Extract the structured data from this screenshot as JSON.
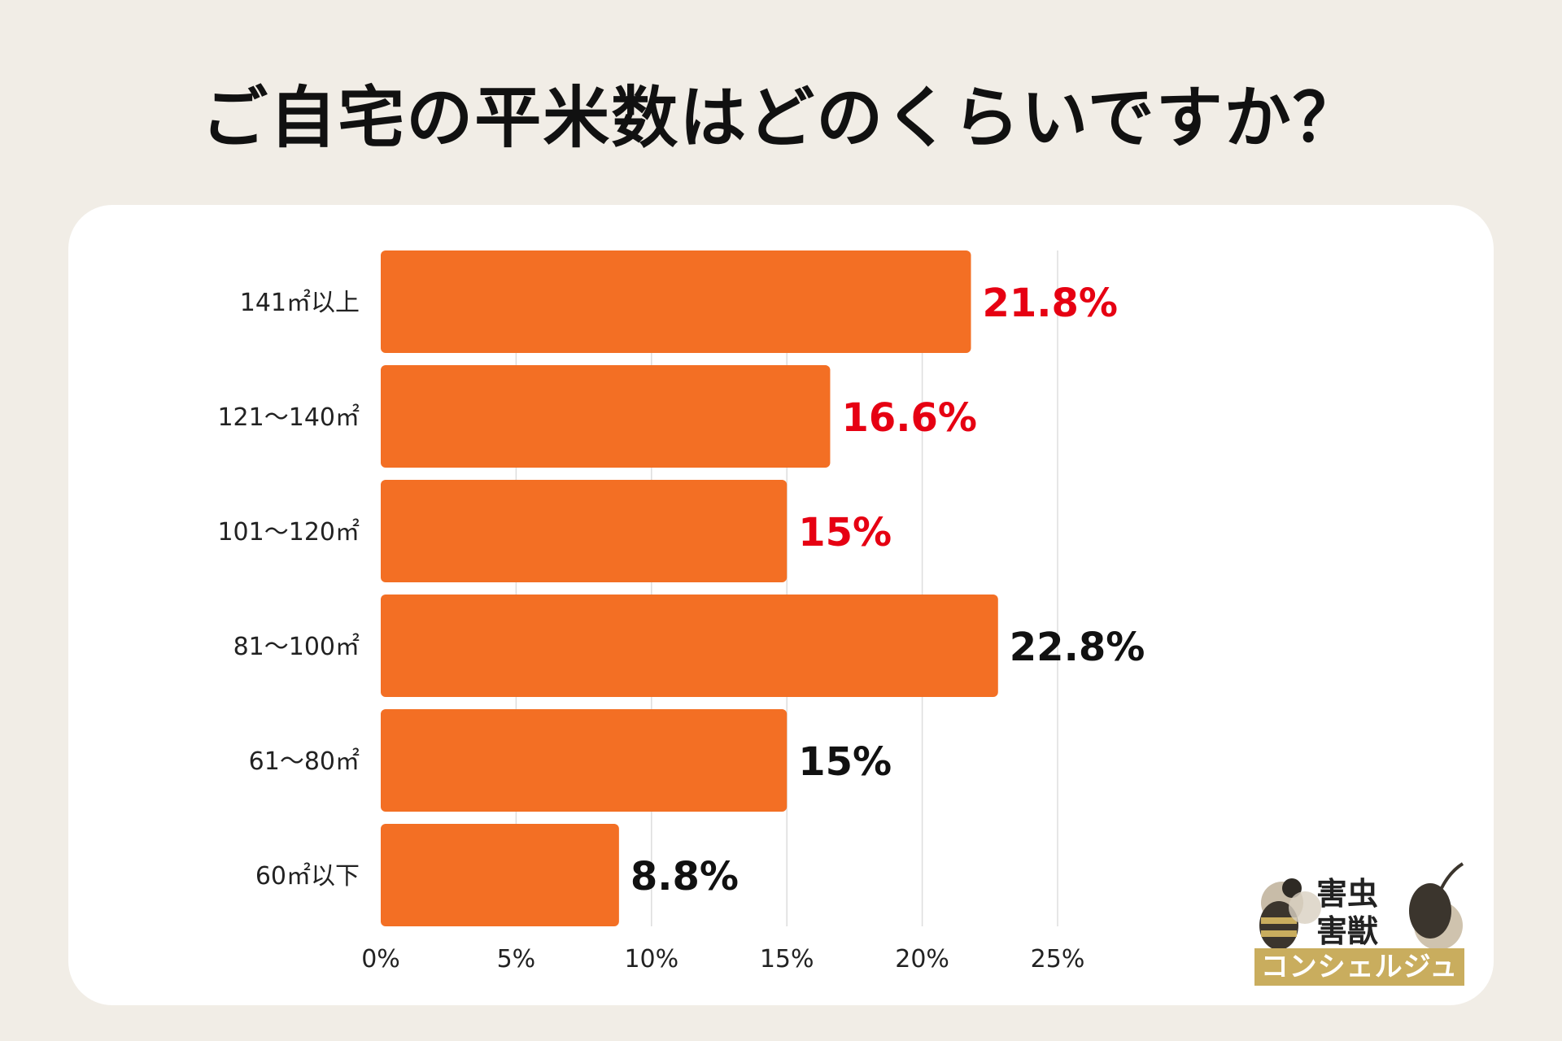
{
  "title": "ご自宅の平米数はどのくらいですか？",
  "chart_data": {
    "type": "bar",
    "orientation": "horizontal",
    "categories": [
      "141㎡以上",
      "121〜140㎡",
      "101〜120㎡",
      "81〜100㎡",
      "61〜80㎡",
      "60㎡以下"
    ],
    "values": [
      21.8,
      16.6,
      15,
      22.8,
      15,
      8.8
    ],
    "value_labels": [
      "21.8%",
      "16.6%",
      "15%",
      "22.8%",
      "15%",
      "8.8%"
    ],
    "label_colors": [
      "#e60012",
      "#e60012",
      "#e60012",
      "#111111",
      "#111111",
      "#111111"
    ],
    "bar_color": "#f36f24",
    "xlim": [
      0,
      25
    ],
    "xticks": [
      "0%",
      "5%",
      "10%",
      "15%",
      "20%",
      "25%"
    ],
    "grid": true
  },
  "logo": {
    "line1": "害虫",
    "line2": "害獣",
    "band": "コンシェルジュ"
  },
  "icons": [
    "bee-icon",
    "rat-icon"
  ]
}
